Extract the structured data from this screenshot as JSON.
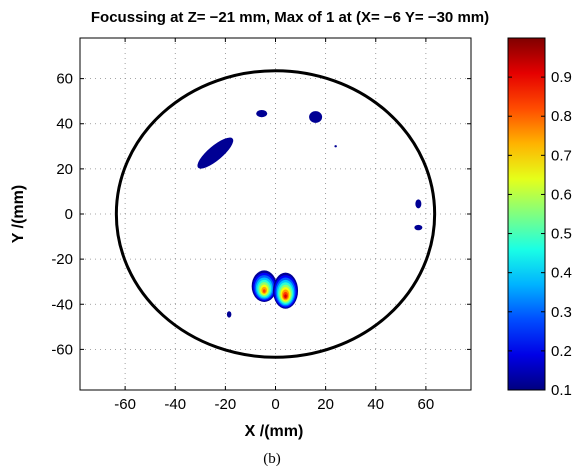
{
  "chart_data": {
    "type": "heatmap",
    "title": "Focussing at Z= −21 mm, Max of 1 at (X= −6 Y= −30 mm)",
    "xlabel": "X /(mm)",
    "ylabel": "Y /(mm)",
    "caption": "(b)",
    "xlim": [
      -78,
      78
    ],
    "ylim": [
      -78,
      78
    ],
    "xticks": [
      -60,
      -40,
      -20,
      0,
      20,
      40,
      60
    ],
    "yticks": [
      -60,
      -40,
      -20,
      0,
      20,
      40,
      60
    ],
    "grid": "dotted",
    "colormap": "jet",
    "colorbar": {
      "range": [
        0.1,
        1.0
      ],
      "ticks": [
        0.1,
        0.2,
        0.3,
        0.4,
        0.5,
        0.6,
        0.7,
        0.8,
        0.9
      ]
    },
    "boundary_circle": {
      "cx": 0,
      "cy": 0,
      "r": 63.5
    },
    "blobs": [
      {
        "x": -4.5,
        "y": -32,
        "rx": 5,
        "ry": 7,
        "peak": 0.85,
        "rotate": 0
      },
      {
        "x": 4,
        "y": -34,
        "rx": 5,
        "ry": 8,
        "peak": 0.95,
        "rotate": 0
      },
      {
        "x": -24,
        "y": 27,
        "rx": 9,
        "ry": 3.2,
        "peak": 0.15,
        "rotate": 40
      },
      {
        "x": -5.5,
        "y": 44.5,
        "rx": 2.2,
        "ry": 1.6,
        "peak": 0.12,
        "rotate": 0
      },
      {
        "x": 16,
        "y": 43,
        "rx": 2.6,
        "ry": 2.6,
        "peak": 0.12,
        "rotate": 0
      },
      {
        "x": 57,
        "y": 4.5,
        "rx": 1.2,
        "ry": 2,
        "peak": 0.12,
        "rotate": 0
      },
      {
        "x": 57,
        "y": -6,
        "rx": 1.6,
        "ry": 1.2,
        "peak": 0.12,
        "rotate": 0
      },
      {
        "x": -18.5,
        "y": -44.5,
        "rx": 0.9,
        "ry": 1.4,
        "peak": 0.12,
        "rotate": 0
      },
      {
        "x": 24,
        "y": 30,
        "rx": 0.5,
        "ry": 0.5,
        "peak": 0.12,
        "rotate": 0
      }
    ]
  }
}
